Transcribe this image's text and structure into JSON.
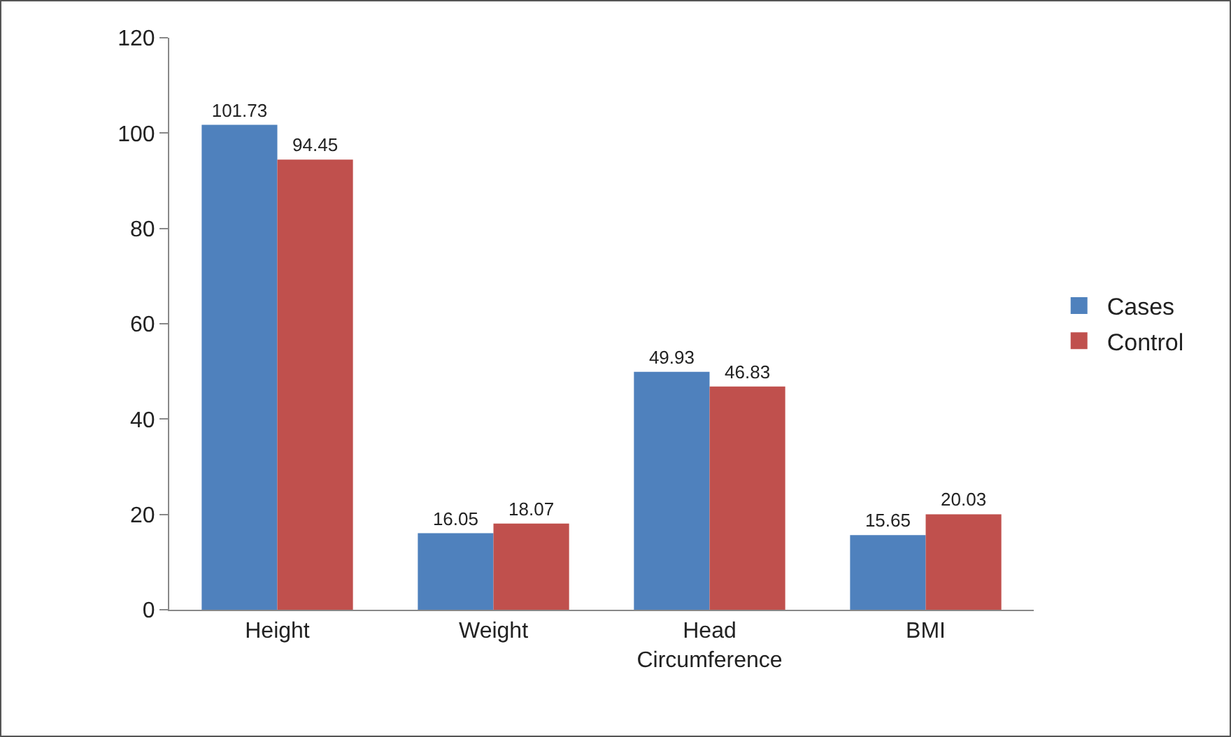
{
  "chart_data": {
    "type": "bar",
    "categories": [
      "Height",
      "Weight",
      "Head Circumference",
      "BMI"
    ],
    "series": [
      {
        "name": "Cases",
        "color": "#4f81bd",
        "values": [
          101.73,
          16.05,
          49.93,
          15.65
        ]
      },
      {
        "name": "Control",
        "color": "#c0504d",
        "values": [
          94.45,
          18.07,
          46.83,
          20.03
        ]
      }
    ],
    "ylim": [
      0,
      120
    ],
    "yticks": [
      0,
      20,
      40,
      60,
      80,
      100,
      120
    ],
    "grid": false,
    "legend": "right",
    "data_labels": true
  }
}
